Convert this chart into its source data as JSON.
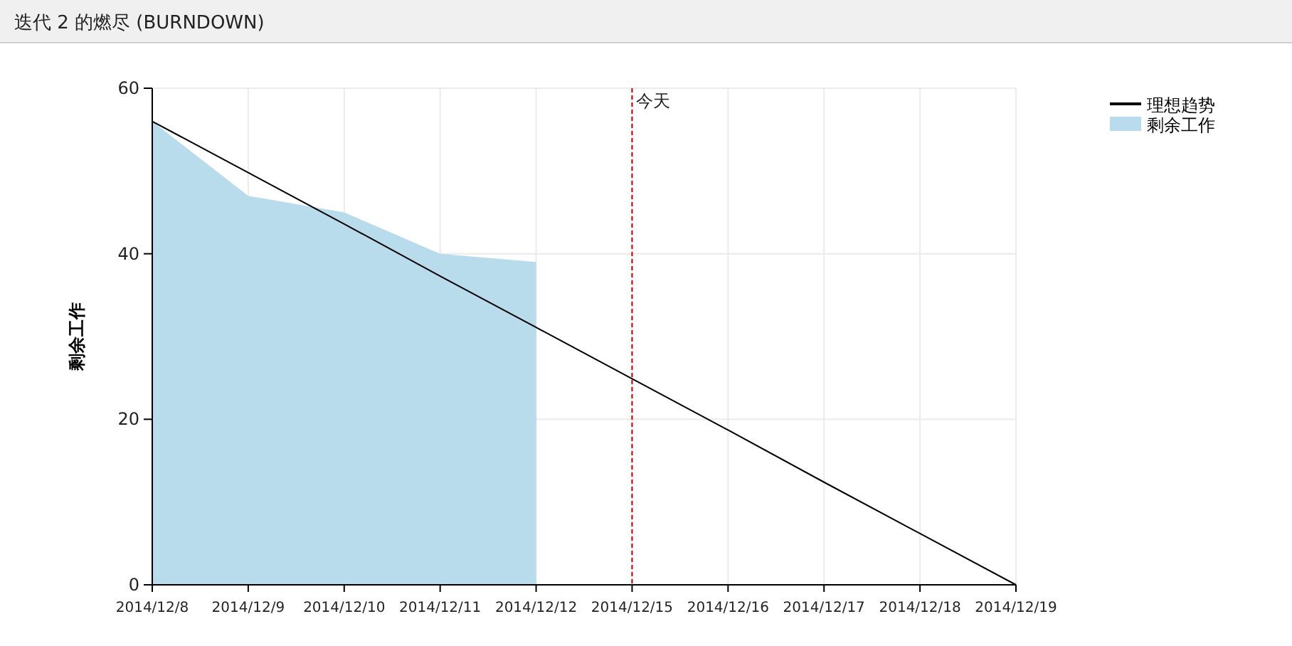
{
  "chart_data": {
    "type": "area",
    "title": "迭代 2 的燃尽 (BURNDOWN)",
    "ylabel": "剩余工作",
    "categories": [
      "2014/12/8",
      "2014/12/9",
      "2014/12/10",
      "2014/12/11",
      "2014/12/12",
      "2014/12/15",
      "2014/12/16",
      "2014/12/17",
      "2014/12/18",
      "2014/12/19"
    ],
    "series": [
      {
        "name": "剩余工作",
        "color": "#b8dcec",
        "values": [
          56,
          47,
          45,
          40,
          39,
          null,
          null,
          null,
          null,
          null
        ]
      },
      {
        "name": "理想趋势",
        "type": "line",
        "color": "#000000",
        "values": [
          56,
          49.8,
          43.6,
          37.3,
          31.1,
          24.9,
          18.7,
          12.4,
          6.2,
          0
        ]
      }
    ],
    "ylim": [
      0,
      60
    ],
    "yticks": [
      0,
      20,
      40,
      60
    ],
    "grid": true,
    "legend": "top right",
    "ref_lines": [
      {
        "axis": "x",
        "value": "2014/12/15",
        "label": "今天",
        "color": "#c00000",
        "line_style": "dashed"
      }
    ]
  }
}
